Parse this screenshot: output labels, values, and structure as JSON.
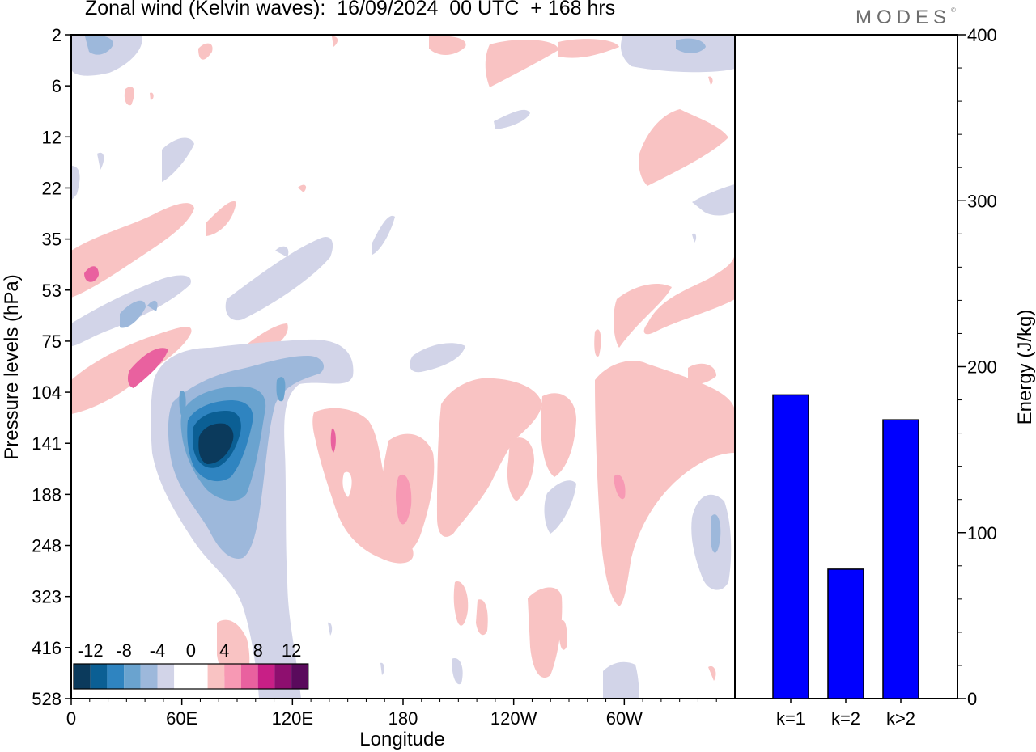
{
  "title": "Zonal wind (Kelvin waves):  16/09/2024  00 UTC  + 168 hrs",
  "logo": "MODES",
  "logo_mark": "©",
  "chart_data": [
    {
      "type": "heatmap",
      "variable": "Zonal wind (Kelvin waves)",
      "xlabel": "Longitude",
      "ylabel": "Pressure levels (hPa)",
      "x_ticks": [
        "0",
        "60E",
        "120E",
        "180",
        "120W",
        "60W"
      ],
      "y_ticks": [
        "2",
        "6",
        "12",
        "22",
        "35",
        "53",
        "75",
        "104",
        "141",
        "188",
        "248",
        "323",
        "416",
        "528"
      ],
      "colorbar": {
        "labels": [
          "-12",
          "-8",
          "-4",
          "0",
          "4",
          "8",
          "12"
        ],
        "colors": [
          "#0b3a5c",
          "#0b5f94",
          "#2f84c0",
          "#6aa3cf",
          "#9db8db",
          "#d2d4e8",
          "#ffffff",
          "#ffffff",
          "#f9c3c3",
          "#f799b4",
          "#e9619f",
          "#c81f86",
          "#8e0f6f",
          "#5a0a5c"
        ]
      },
      "features": [
        {
          "name": "easterly core",
          "lon": 75,
          "p": 141,
          "value": -14
        },
        {
          "name": "westerly max",
          "lon": 172,
          "p": 200,
          "value": 6
        },
        {
          "name": "westerly max",
          "lon": 36,
          "p": 90,
          "value": 7
        }
      ]
    },
    {
      "type": "bar",
      "categories": [
        "k=1",
        "k=2",
        "k>2"
      ],
      "values": [
        183,
        78,
        168
      ],
      "ylabel": "Energy (J/kg)",
      "ylim": [
        0,
        400
      ],
      "y_ticks": [
        0,
        100,
        200,
        300,
        400
      ],
      "bar_color": "#0000ff"
    }
  ]
}
